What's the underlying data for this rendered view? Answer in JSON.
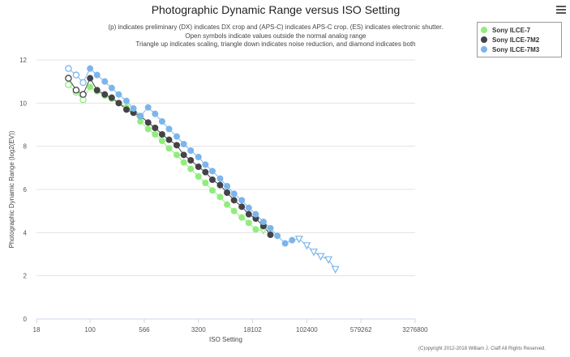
{
  "chart_data": {
    "type": "scatter",
    "title": "Photographic Dynamic Range versus ISO Setting",
    "subtitle": [
      "(p) indicates preliminary (DX) indicates DX crop and (APS-C) indicates APS-C crop. (ES) indicates electronic shutter.",
      "Open symbols indicate values outside the normal analog range",
      "Triangle up indicates scaling, triangle down indicates noise reduction, and diamond indicates both"
    ],
    "xlabel": "ISO Setting",
    "ylabel": "Photographic Dynamic Range (log2(EV))",
    "x_scale": "log",
    "x_ticks": [
      18,
      100,
      566,
      3200,
      18102,
      102400,
      579262,
      3276800
    ],
    "x_tick_labels": [
      "18",
      "100",
      "566",
      "3200",
      "18102",
      "102400",
      "579262",
      "3276800"
    ],
    "y_ticks": [
      0,
      2,
      4,
      6,
      8,
      10,
      12
    ],
    "xlim": [
      18,
      3276800
    ],
    "ylim": [
      0,
      12
    ],
    "grid": "horizontal",
    "legend_position": "top-right",
    "series": [
      {
        "name": "Sony ILCE-7",
        "color": "#90ed7d",
        "points": [
          {
            "x": 50,
            "y": 10.85,
            "m": "o"
          },
          {
            "x": 64,
            "y": 10.5,
            "m": "o"
          },
          {
            "x": 80,
            "y": 10.15,
            "m": "o"
          },
          {
            "x": 100,
            "y": 10.75
          },
          {
            "x": 125,
            "y": 10.55
          },
          {
            "x": 160,
            "y": 10.35
          },
          {
            "x": 200,
            "y": 10.2
          },
          {
            "x": 250,
            "y": 10.0
          },
          {
            "x": 320,
            "y": 9.8
          },
          {
            "x": 400,
            "y": 9.6
          },
          {
            "x": 500,
            "y": 9.15
          },
          {
            "x": 640,
            "y": 8.8
          },
          {
            "x": 800,
            "y": 8.55
          },
          {
            "x": 1000,
            "y": 8.25
          },
          {
            "x": 1250,
            "y": 7.9
          },
          {
            "x": 1600,
            "y": 7.6
          },
          {
            "x": 2000,
            "y": 7.25
          },
          {
            "x": 2500,
            "y": 6.95
          },
          {
            "x": 3200,
            "y": 6.6
          },
          {
            "x": 4000,
            "y": 6.3
          },
          {
            "x": 5000,
            "y": 5.95
          },
          {
            "x": 6400,
            "y": 5.65
          },
          {
            "x": 8000,
            "y": 5.3
          },
          {
            "x": 10000,
            "y": 5.0
          },
          {
            "x": 12800,
            "y": 4.7
          },
          {
            "x": 16000,
            "y": 4.45
          },
          {
            "x": 20000,
            "y": 4.15
          },
          {
            "x": 25600,
            "y": 4.1,
            "m": "v"
          }
        ]
      },
      {
        "name": "Sony ILCE-7M2",
        "color": "#434348",
        "points": [
          {
            "x": 50,
            "y": 11.15,
            "m": "o"
          },
          {
            "x": 64,
            "y": 10.6,
            "m": "o"
          },
          {
            "x": 80,
            "y": 10.4,
            "m": "o"
          },
          {
            "x": 100,
            "y": 11.15
          },
          {
            "x": 125,
            "y": 10.6
          },
          {
            "x": 160,
            "y": 10.4
          },
          {
            "x": 200,
            "y": 10.25
          },
          {
            "x": 250,
            "y": 10.0
          },
          {
            "x": 320,
            "y": 9.7
          },
          {
            "x": 400,
            "y": 9.55
          },
          {
            "x": 500,
            "y": 9.4
          },
          {
            "x": 640,
            "y": 9.1
          },
          {
            "x": 800,
            "y": 8.85
          },
          {
            "x": 1000,
            "y": 8.55
          },
          {
            "x": 1250,
            "y": 8.3
          },
          {
            "x": 1600,
            "y": 8.05
          },
          {
            "x": 2000,
            "y": 7.6
          },
          {
            "x": 2500,
            "y": 7.35
          },
          {
            "x": 3200,
            "y": 7.05
          },
          {
            "x": 4000,
            "y": 6.8
          },
          {
            "x": 5000,
            "y": 6.45
          },
          {
            "x": 6400,
            "y": 6.2
          },
          {
            "x": 8000,
            "y": 5.85
          },
          {
            "x": 10000,
            "y": 5.5
          },
          {
            "x": 12800,
            "y": 5.2
          },
          {
            "x": 16000,
            "y": 4.85
          },
          {
            "x": 20000,
            "y": 4.65
          },
          {
            "x": 25600,
            "y": 4.3
          },
          {
            "x": 32000,
            "y": 3.9
          }
        ]
      },
      {
        "name": "Sony ILCE-7M3",
        "color": "#7cb5ec",
        "points": [
          {
            "x": 50,
            "y": 11.6,
            "m": "o"
          },
          {
            "x": 64,
            "y": 11.3,
            "m": "o"
          },
          {
            "x": 80,
            "y": 10.95,
            "m": "o"
          },
          {
            "x": 100,
            "y": 11.6
          },
          {
            "x": 125,
            "y": 11.3
          },
          {
            "x": 160,
            "y": 11.0
          },
          {
            "x": 200,
            "y": 10.7
          },
          {
            "x": 250,
            "y": 10.4
          },
          {
            "x": 320,
            "y": 10.1
          },
          {
            "x": 400,
            "y": 9.75
          },
          {
            "x": 500,
            "y": 9.4
          },
          {
            "x": 640,
            "y": 9.8
          },
          {
            "x": 800,
            "y": 9.5
          },
          {
            "x": 1000,
            "y": 9.15
          },
          {
            "x": 1250,
            "y": 8.8
          },
          {
            "x": 1600,
            "y": 8.45
          },
          {
            "x": 2000,
            "y": 8.1
          },
          {
            "x": 2500,
            "y": 7.8
          },
          {
            "x": 3200,
            "y": 7.5
          },
          {
            "x": 4000,
            "y": 7.15
          },
          {
            "x": 5000,
            "y": 6.85
          },
          {
            "x": 6400,
            "y": 6.5
          },
          {
            "x": 8000,
            "y": 6.15
          },
          {
            "x": 10000,
            "y": 5.8
          },
          {
            "x": 12800,
            "y": 5.5
          },
          {
            "x": 16000,
            "y": 5.15
          },
          {
            "x": 20000,
            "y": 4.85
          },
          {
            "x": 25600,
            "y": 4.5
          },
          {
            "x": 32000,
            "y": 4.2
          },
          {
            "x": 40000,
            "y": 3.85
          },
          {
            "x": 51200,
            "y": 3.5
          },
          {
            "x": 64000,
            "y": 3.65
          },
          {
            "x": 80000,
            "y": 3.7,
            "m": "v"
          },
          {
            "x": 102400,
            "y": 3.4,
            "m": "v"
          },
          {
            "x": 128000,
            "y": 3.1,
            "m": "v"
          },
          {
            "x": 160000,
            "y": 2.9,
            "m": "v"
          },
          {
            "x": 204800,
            "y": 2.75,
            "m": "v"
          },
          {
            "x": 256000,
            "y": 2.3,
            "m": "v"
          }
        ]
      }
    ]
  },
  "copyright": "(C)opyright 2012-2018 William J. Claff All Rights Reserved."
}
